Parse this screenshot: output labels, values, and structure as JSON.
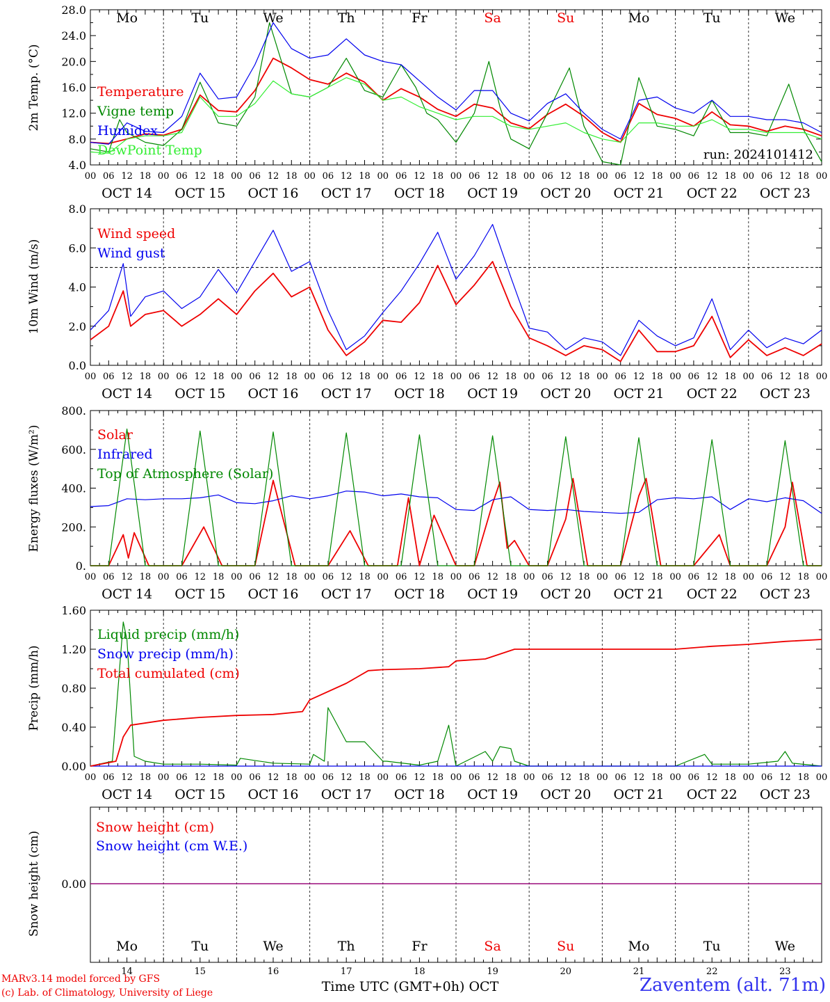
{
  "run_label": "run: 2024101412",
  "x_axis_title": "Time UTC (GMT+0h) OCT",
  "credits": [
    "MARv3.14 model forced by GFS",
    "(c) Lab. of Climatology, University of Liege"
  ],
  "station": "Zaventem (alt. 71m)",
  "colors": {
    "red": "#ee0000",
    "green": "#008800",
    "blue": "#0000ee",
    "lightgreen": "#33ee33",
    "purple": "#880088",
    "station": "#3333ee"
  },
  "weekdays": [
    "Mo",
    "Tu",
    "We",
    "Th",
    "Fr",
    "Sa",
    "Su",
    "Mo",
    "Tu",
    "We"
  ],
  "weekday_colors": [
    "black",
    "black",
    "black",
    "black",
    "black",
    "red",
    "red",
    "black",
    "black",
    "black"
  ],
  "date_labels": [
    "OCT 14",
    "OCT 15",
    "OCT 16",
    "OCT 17",
    "OCT 18",
    "OCT 19",
    "OCT 20",
    "OCT 21",
    "OCT 22",
    "OCT 23"
  ],
  "day_numbers": [
    "14",
    "15",
    "16",
    "17",
    "18",
    "19",
    "20",
    "21",
    "22",
    "23"
  ],
  "hour_labels": [
    "00",
    "06",
    "12",
    "18"
  ],
  "chart_data": [
    {
      "type": "line",
      "ylabel": "2m Temp. (°C)",
      "ylim": [
        4,
        28
      ],
      "yticks": [
        "4.0",
        "8.0",
        "12.0",
        "16.0",
        "20.0",
        "24.0",
        "28.0"
      ],
      "x_unit": "days since OCT 14 00 UTC",
      "series": [
        {
          "name": "Temperature",
          "color": "red",
          "x": [
            0,
            0.25,
            0.5,
            0.75,
            1,
            1.25,
            1.5,
            1.75,
            2,
            2.25,
            2.5,
            2.75,
            3,
            3.25,
            3.5,
            3.75,
            4,
            4.25,
            4.5,
            4.75,
            5,
            5.25,
            5.5,
            5.75,
            6,
            6.25,
            6.5,
            6.75,
            7,
            7.25,
            7.5,
            7.75,
            8,
            8.25,
            8.5,
            8.75,
            9,
            9.25,
            9.5,
            9.75,
            10
          ],
          "y": [
            7.5,
            7.3,
            8.0,
            8.8,
            8.6,
            9.5,
            14.8,
            12.4,
            12.2,
            15.5,
            20.5,
            19.0,
            17.2,
            16.5,
            18.2,
            16.8,
            14.0,
            15.8,
            14.5,
            12.6,
            11.5,
            13.4,
            12.8,
            10.5,
            9.6,
            11.8,
            13.4,
            11.5,
            9.0,
            7.5,
            13.5,
            11.8,
            11.2,
            10.0,
            12.2,
            10.2,
            10.0,
            9.2,
            10.0,
            9.5,
            8.5
          ]
        },
        {
          "name": "Vigne temp",
          "color": "green",
          "x": [
            0,
            0.25,
            0.4,
            0.5,
            0.75,
            1,
            1.25,
            1.5,
            1.75,
            2,
            2.25,
            2.45,
            2.6,
            2.75,
            3,
            3.25,
            3.5,
            3.75,
            4,
            4.25,
            4.45,
            4.6,
            4.75,
            5,
            5.25,
            5.45,
            5.6,
            5.75,
            6,
            6.25,
            6.55,
            6.75,
            7,
            7.25,
            7.5,
            7.75,
            8,
            8.25,
            8.5,
            8.75,
            9,
            9.25,
            9.55,
            9.75,
            10
          ],
          "y": [
            6.5,
            6.0,
            11.0,
            9.0,
            7.5,
            7.0,
            9.5,
            16.8,
            10.5,
            10.0,
            14.5,
            26.0,
            20.5,
            15.0,
            14.5,
            16.0,
            20.5,
            15.5,
            14.5,
            19.5,
            16.0,
            12.0,
            11.0,
            7.5,
            12.0,
            20.0,
            13.0,
            8.0,
            6.5,
            12.0,
            19.0,
            10.0,
            4.5,
            4.0,
            17.5,
            10.0,
            9.5,
            8.5,
            14.0,
            9.0,
            9.0,
            8.5,
            16.5,
            9.5,
            4.5
          ]
        },
        {
          "name": "Humidex",
          "color": "blue",
          "x": [
            0,
            0.25,
            0.5,
            0.75,
            1,
            1.25,
            1.5,
            1.75,
            2,
            2.25,
            2.5,
            2.75,
            3,
            3.25,
            3.5,
            3.75,
            4,
            4.25,
            4.5,
            4.75,
            5,
            5.25,
            5.5,
            5.75,
            6,
            6.25,
            6.5,
            6.75,
            7,
            7.25,
            7.5,
            7.75,
            8,
            8.25,
            8.5,
            8.75,
            9,
            9.25,
            9.5,
            9.75,
            10
          ],
          "y": [
            7.5,
            7.2,
            10.5,
            9.2,
            9.0,
            11.5,
            18.2,
            14.2,
            14.5,
            19.5,
            26.0,
            22.0,
            20.5,
            21.0,
            23.5,
            21.0,
            20.0,
            19.5,
            17.0,
            14.5,
            12.5,
            15.5,
            15.5,
            12.0,
            10.8,
            13.5,
            15.0,
            12.0,
            9.5,
            8.0,
            14.0,
            14.5,
            12.8,
            12.0,
            14.0,
            11.5,
            11.5,
            11.0,
            11.0,
            10.5,
            9.0
          ]
        },
        {
          "name": "DewPoint Temp",
          "color": "lightgreen",
          "x": [
            0,
            0.25,
            0.5,
            0.75,
            1,
            1.25,
            1.5,
            1.75,
            2,
            2.25,
            2.5,
            2.75,
            3,
            3.25,
            3.5,
            3.75,
            4,
            4.25,
            4.5,
            4.75,
            5,
            5.25,
            5.5,
            5.75,
            6,
            6.25,
            6.5,
            6.75,
            7,
            7.25,
            7.5,
            7.75,
            8,
            8.25,
            8.5,
            8.75,
            9,
            9.25,
            9.5,
            9.75,
            10
          ],
          "y": [
            6.0,
            5.8,
            8.0,
            8.5,
            8.5,
            9.0,
            14.5,
            11.5,
            11.5,
            13.5,
            17.0,
            15.0,
            14.5,
            16.0,
            17.5,
            16.5,
            14.0,
            14.5,
            13.0,
            12.0,
            11.0,
            11.5,
            11.5,
            10.0,
            9.5,
            10.0,
            10.5,
            9.0,
            8.0,
            7.5,
            10.5,
            10.5,
            10.0,
            10.0,
            11.0,
            9.5,
            9.5,
            9.0,
            9.0,
            9.0,
            8.0
          ]
        }
      ],
      "annotation": "run: 2024101412"
    },
    {
      "type": "line",
      "ylabel": "10m Wind (m/s)",
      "ylim": [
        0,
        8
      ],
      "yticks": [
        "0.0",
        "2.0",
        "4.0",
        "6.0",
        "8.0"
      ],
      "reference_line": 5.0,
      "series": [
        {
          "name": "Wind speed",
          "color": "red",
          "x": [
            0,
            0.25,
            0.45,
            0.55,
            0.75,
            1,
            1.25,
            1.5,
            1.75,
            2,
            2.25,
            2.5,
            2.75,
            3,
            3.25,
            3.5,
            3.75,
            4,
            4.25,
            4.5,
            4.75,
            5,
            5.25,
            5.5,
            5.75,
            6,
            6.25,
            6.5,
            6.75,
            7,
            7.25,
            7.5,
            7.75,
            8,
            8.25,
            8.5,
            8.75,
            9,
            9.25,
            9.5,
            9.75,
            10
          ],
          "y": [
            1.3,
            2.0,
            3.8,
            2.0,
            2.6,
            2.8,
            2.0,
            2.6,
            3.4,
            2.6,
            3.8,
            4.7,
            3.5,
            4.0,
            1.8,
            0.5,
            1.2,
            2.3,
            2.2,
            3.2,
            5.1,
            3.1,
            4.1,
            5.3,
            3.0,
            1.4,
            1.0,
            0.5,
            1.0,
            0.8,
            0.2,
            1.8,
            0.7,
            0.7,
            1.0,
            2.5,
            0.4,
            1.3,
            0.5,
            0.9,
            0.5,
            1.1
          ]
        },
        {
          "name": "Wind gust",
          "color": "blue",
          "x": [
            0,
            0.25,
            0.45,
            0.55,
            0.75,
            1,
            1.25,
            1.5,
            1.75,
            2,
            2.25,
            2.5,
            2.75,
            3,
            3.25,
            3.5,
            3.75,
            4,
            4.25,
            4.5,
            4.75,
            5,
            5.25,
            5.5,
            5.75,
            6,
            6.25,
            6.5,
            6.75,
            7,
            7.25,
            7.5,
            7.75,
            8,
            8.25,
            8.5,
            8.75,
            9,
            9.25,
            9.5,
            9.75,
            10
          ],
          "y": [
            1.8,
            2.8,
            5.2,
            2.5,
            3.5,
            3.8,
            2.9,
            3.5,
            4.9,
            3.7,
            5.3,
            6.9,
            4.8,
            5.3,
            2.8,
            0.8,
            1.5,
            2.7,
            3.8,
            5.2,
            6.8,
            4.4,
            5.6,
            7.2,
            4.5,
            1.9,
            1.7,
            0.8,
            1.4,
            1.2,
            0.5,
            2.3,
            1.5,
            1.0,
            1.4,
            3.4,
            0.8,
            1.8,
            0.9,
            1.4,
            1.1,
            1.8
          ]
        }
      ]
    },
    {
      "type": "line",
      "ylabel": "Energy fluxes (W/m²)",
      "ylim": [
        0,
        800
      ],
      "yticks": [
        "0.",
        "200.",
        "400.",
        "600.",
        "800."
      ],
      "series": [
        {
          "name": "Solar",
          "color": "red",
          "x": [
            0,
            0.25,
            0.45,
            0.52,
            0.6,
            0.8,
            1,
            1.25,
            1.55,
            1.8,
            2,
            2.25,
            2.5,
            2.8,
            3,
            3.25,
            3.55,
            3.8,
            4,
            4.2,
            4.35,
            4.5,
            4.7,
            5,
            5.25,
            5.5,
            5.6,
            5.7,
            5.8,
            6,
            6.25,
            6.5,
            6.6,
            6.8,
            7,
            7.25,
            7.5,
            7.6,
            7.8,
            8,
            8.25,
            8.6,
            8.75,
            9,
            9.25,
            9.5,
            9.6,
            9.8,
            10
          ],
          "y": [
            0,
            0,
            160,
            40,
            170,
            0,
            0,
            0,
            200,
            0,
            0,
            0,
            440,
            0,
            0,
            0,
            180,
            0,
            0,
            0,
            350,
            0,
            260,
            0,
            0,
            320,
            430,
            90,
            130,
            0,
            0,
            240,
            450,
            0,
            0,
            0,
            360,
            450,
            0,
            0,
            0,
            160,
            0,
            0,
            0,
            200,
            430,
            0,
            0
          ]
        },
        {
          "name": "Infrared",
          "color": "blue",
          "x": [
            0,
            0.25,
            0.5,
            0.75,
            1,
            1.25,
            1.5,
            1.75,
            2,
            2.25,
            2.5,
            2.75,
            3,
            3.25,
            3.5,
            3.75,
            4,
            4.25,
            4.5,
            4.75,
            5,
            5.25,
            5.5,
            5.75,
            6,
            6.25,
            6.5,
            6.75,
            7,
            7.25,
            7.5,
            7.75,
            8,
            8.25,
            8.5,
            8.75,
            9,
            9.25,
            9.5,
            9.75,
            10
          ],
          "y": [
            305,
            310,
            345,
            340,
            345,
            345,
            350,
            365,
            325,
            320,
            335,
            360,
            345,
            360,
            385,
            380,
            360,
            370,
            355,
            350,
            290,
            285,
            340,
            355,
            290,
            285,
            290,
            280,
            275,
            270,
            275,
            340,
            350,
            345,
            355,
            290,
            345,
            330,
            350,
            335,
            270
          ]
        },
        {
          "name": "Top of Atmosphere (Solar)",
          "color": "green",
          "x": [
            0,
            0.25,
            0.5,
            0.75,
            1,
            1.25,
            1.5,
            1.75,
            2,
            2.25,
            2.5,
            2.75,
            3,
            3.25,
            3.5,
            3.75,
            4,
            4.25,
            4.5,
            4.75,
            5,
            5.25,
            5.5,
            5.75,
            6,
            6.25,
            6.5,
            6.75,
            7,
            7.25,
            7.5,
            7.75,
            8,
            8.25,
            8.5,
            8.75,
            9,
            9.25,
            9.5,
            9.75,
            10
          ],
          "y": [
            0,
            0,
            705,
            0,
            0,
            0,
            695,
            0,
            0,
            0,
            690,
            0,
            0,
            0,
            685,
            0,
            0,
            0,
            675,
            0,
            0,
            0,
            670,
            0,
            0,
            0,
            665,
            0,
            0,
            0,
            660,
            0,
            0,
            0,
            650,
            0,
            0,
            0,
            645,
            0,
            0
          ]
        }
      ]
    },
    {
      "type": "line",
      "ylabel": "Precip (mm/h)",
      "ylim": [
        0,
        1.6
      ],
      "yticks": [
        "0.00",
        "0.40",
        "0.80",
        "1.20",
        "1.60"
      ],
      "series": [
        {
          "name": "Liquid precip (mm/h)",
          "color": "green",
          "x": [
            0,
            0.3,
            0.45,
            0.5,
            0.6,
            0.75,
            1,
            1.5,
            2,
            2.05,
            2.5,
            3,
            3.05,
            3.2,
            3.25,
            3.5,
            3.75,
            4,
            4.05,
            4.5,
            4.75,
            4.9,
            5,
            5.4,
            5.5,
            5.6,
            5.75,
            5.8,
            6,
            7,
            8,
            8.4,
            8.5,
            9,
            9.4,
            9.5,
            9.6,
            10
          ],
          "y": [
            0,
            0.05,
            1.48,
            1.3,
            0.1,
            0.05,
            0.02,
            0.02,
            0.01,
            0.08,
            0.03,
            0.02,
            0.12,
            0.05,
            0.6,
            0.25,
            0.25,
            0.05,
            0.05,
            0.01,
            0.05,
            0.42,
            0,
            0.15,
            0.05,
            0.2,
            0.18,
            0.05,
            0,
            0,
            0,
            0.12,
            0.02,
            0.02,
            0.05,
            0.15,
            0.03,
            0
          ]
        },
        {
          "name": "Snow precip (mm/h)",
          "color": "blue",
          "x": [
            0,
            10
          ],
          "y": [
            0,
            0
          ]
        },
        {
          "name": "Total cumulated (cm)",
          "color": "red",
          "x": [
            0,
            0.35,
            0.45,
            0.55,
            1,
            1.5,
            2,
            2.5,
            2.9,
            3,
            3.5,
            3.8,
            4,
            4.5,
            4.9,
            5,
            5.4,
            5.8,
            6,
            7,
            8,
            8.5,
            9,
            9.5,
            10
          ],
          "y": [
            0,
            0.05,
            0.3,
            0.42,
            0.47,
            0.5,
            0.52,
            0.53,
            0.56,
            0.68,
            0.85,
            0.98,
            0.99,
            1.0,
            1.02,
            1.08,
            1.1,
            1.2,
            1.2,
            1.2,
            1.2,
            1.23,
            1.25,
            1.28,
            1.3
          ]
        }
      ]
    },
    {
      "type": "line",
      "ylabel": "Snow height (cm)",
      "yticks": [
        "0.00"
      ],
      "series": [
        {
          "name": "Snow height (cm)",
          "color": "red",
          "x": [
            0,
            10
          ],
          "y": [
            0,
            0
          ]
        },
        {
          "name": "Snow height (cm W.E.)",
          "color": "blue",
          "x": [
            0,
            10
          ],
          "y": [
            0,
            0
          ]
        }
      ]
    }
  ]
}
